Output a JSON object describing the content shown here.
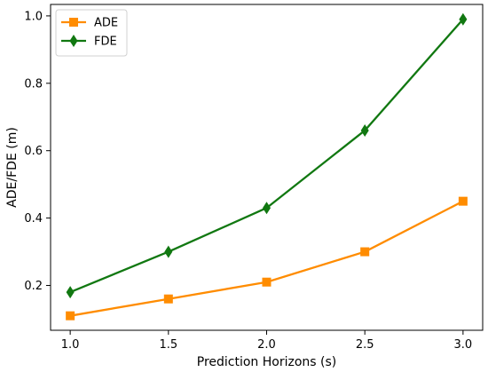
{
  "chart_data": {
    "type": "line",
    "x": [
      1.0,
      1.5,
      2.0,
      2.5,
      3.0
    ],
    "series": [
      {
        "name": "ADE",
        "values": [
          0.11,
          0.16,
          0.21,
          0.3,
          0.45
        ],
        "color": "#ff8c00",
        "marker": "square"
      },
      {
        "name": "FDE",
        "values": [
          0.18,
          0.3,
          0.43,
          0.66,
          0.99
        ],
        "color": "#117811",
        "marker": "thin-diamond"
      }
    ],
    "title": "",
    "xlabel": "Prediction Horizons (s)",
    "ylabel": "ADE/FDE (m)",
    "xlim": [
      0.9,
      3.1
    ],
    "ylim": [
      0.067,
      1.034
    ],
    "xticks": [
      "1.0",
      "1.5",
      "2.0",
      "2.5",
      "3.0"
    ],
    "yticks": [
      "0.2",
      "0.4",
      "0.6",
      "0.8",
      "1.0"
    ],
    "grid": false,
    "legend_position": "upper left"
  }
}
